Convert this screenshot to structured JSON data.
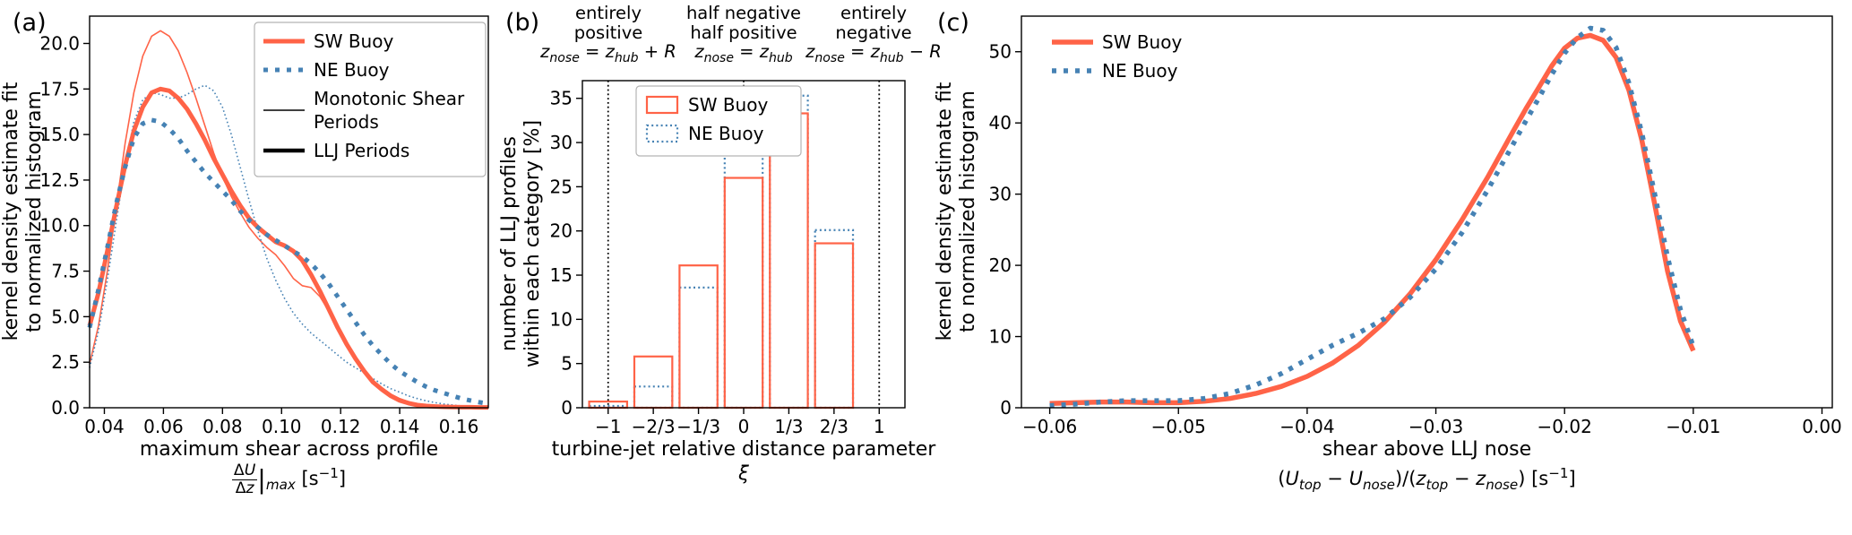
{
  "figure_colors": {
    "sw_buoy": "#ff6347",
    "ne_buoy": "#4682b4",
    "axis": "#000000",
    "legend_edge": "#b3b3b3"
  },
  "chart_data": [
    {
      "type": "line",
      "panel_label": "(a)",
      "ylabel_html": "kernel density estimate fit<br>to normalized histogram",
      "xlabel_line1": "maximum shear across profile",
      "xlabel_line2_html": "<span class=\"frac\"><span class=\"num\">Δ<i>U</i></span><span>Δ<i>z</i></span></span><span class=\"vbar\">|</span><sub><i>max</i></sub>&nbsp;[s<sup>−1</sup>]",
      "xlim": [
        0.035,
        0.17
      ],
      "ylim": [
        0,
        21.5
      ],
      "xticks": {
        "values": [
          0.04,
          0.06,
          0.08,
          0.1,
          0.12,
          0.14,
          0.16
        ],
        "labels": [
          "0.04",
          "0.06",
          "0.08",
          "0.10",
          "0.12",
          "0.14",
          "0.16"
        ]
      },
      "yticks": {
        "values": [
          0,
          2.5,
          5,
          7.5,
          10,
          12.5,
          15,
          17.5,
          20
        ],
        "labels": [
          "0.0",
          "2.5",
          "5.0",
          "7.5",
          "10.0",
          "12.5",
          "15.0",
          "17.5",
          "20.0"
        ]
      },
      "series": [
        {
          "name": "SW Buoy Monotonic Shear Periods",
          "color": "#ff6347",
          "width": 1.6,
          "dash": "",
          "x": [
            0.035,
            0.038,
            0.041,
            0.044,
            0.047,
            0.05,
            0.053,
            0.056,
            0.059,
            0.062,
            0.065,
            0.068,
            0.071,
            0.074,
            0.077,
            0.08,
            0.083,
            0.086,
            0.089,
            0.092,
            0.095,
            0.098,
            0.101,
            0.104,
            0.107,
            0.11,
            0.113,
            0.116,
            0.119,
            0.122,
            0.125,
            0.128,
            0.131,
            0.134,
            0.137,
            0.14,
            0.143,
            0.146,
            0.149,
            0.152,
            0.155,
            0.158,
            0.161,
            0.164,
            0.167,
            0.17
          ],
          "y": [
            2.4,
            4.5,
            7.5,
            11.0,
            14.5,
            17.3,
            19.3,
            20.4,
            20.7,
            20.4,
            19.6,
            18.4,
            17.0,
            15.5,
            14.0,
            12.7,
            11.6,
            10.7,
            9.9,
            9.3,
            8.8,
            8.4,
            7.8,
            7.1,
            6.7,
            6.6,
            6.1,
            5.3,
            4.4,
            3.5,
            2.7,
            2.1,
            1.5,
            1.1,
            0.75,
            0.5,
            0.33,
            0.2,
            0.13,
            0.08,
            0.05,
            0.04,
            0.03,
            0.02,
            0.02,
            0.01
          ]
        },
        {
          "name": "NE Buoy Monotonic Shear Periods",
          "color": "#4682b4",
          "width": 1.6,
          "dash": "1.6 2.8",
          "x": [
            0.035,
            0.038,
            0.041,
            0.044,
            0.047,
            0.05,
            0.053,
            0.056,
            0.059,
            0.062,
            0.065,
            0.068,
            0.071,
            0.074,
            0.077,
            0.08,
            0.083,
            0.086,
            0.089,
            0.092,
            0.095,
            0.098,
            0.101,
            0.104,
            0.107,
            0.11,
            0.113,
            0.116,
            0.119,
            0.122,
            0.125,
            0.128,
            0.131,
            0.134,
            0.137,
            0.14,
            0.143,
            0.146,
            0.149,
            0.152,
            0.155,
            0.158,
            0.161,
            0.164,
            0.167,
            0.17
          ],
          "y": [
            2.2,
            4.2,
            7.0,
            10.2,
            13.3,
            15.7,
            16.9,
            17.3,
            17.2,
            17.0,
            17.0,
            17.2,
            17.5,
            17.7,
            17.4,
            16.5,
            15.0,
            13.2,
            11.4,
            9.7,
            8.2,
            7.0,
            6.0,
            5.2,
            4.6,
            4.1,
            3.7,
            3.3,
            2.9,
            2.5,
            2.2,
            1.9,
            1.6,
            1.3,
            1.05,
            0.85,
            0.65,
            0.5,
            0.38,
            0.28,
            0.2,
            0.15,
            0.1,
            0.07,
            0.05,
            0.04
          ]
        },
        {
          "name": "SW Buoy LLJ Periods",
          "color": "#ff6347",
          "width": 5,
          "dash": "",
          "x": [
            0.035,
            0.038,
            0.041,
            0.044,
            0.047,
            0.05,
            0.053,
            0.056,
            0.059,
            0.062,
            0.065,
            0.068,
            0.071,
            0.074,
            0.077,
            0.08,
            0.083,
            0.086,
            0.089,
            0.092,
            0.095,
            0.098,
            0.101,
            0.104,
            0.107,
            0.11,
            0.113,
            0.116,
            0.119,
            0.122,
            0.125,
            0.128,
            0.131,
            0.134,
            0.137,
            0.14,
            0.143,
            0.146,
            0.149,
            0.152,
            0.155,
            0.158,
            0.161,
            0.164,
            0.167,
            0.17
          ],
          "y": [
            4.5,
            6.3,
            8.6,
            11.0,
            13.3,
            15.2,
            16.5,
            17.3,
            17.5,
            17.4,
            17.0,
            16.4,
            15.6,
            14.7,
            13.7,
            12.8,
            11.9,
            11.1,
            10.4,
            9.9,
            9.5,
            9.1,
            8.9,
            8.6,
            8.1,
            7.3,
            6.4,
            5.4,
            4.4,
            3.5,
            2.7,
            2.0,
            1.4,
            1.0,
            0.65,
            0.4,
            0.25,
            0.15,
            0.1,
            0.07,
            0.05,
            0.04,
            0.03,
            0.03,
            0.02,
            0.02
          ]
        },
        {
          "name": "NE Buoy LLJ Periods",
          "color": "#4682b4",
          "width": 5,
          "dash": "5 8",
          "x": [
            0.035,
            0.038,
            0.041,
            0.044,
            0.047,
            0.05,
            0.053,
            0.056,
            0.059,
            0.062,
            0.065,
            0.068,
            0.071,
            0.074,
            0.077,
            0.08,
            0.083,
            0.086,
            0.089,
            0.092,
            0.095,
            0.098,
            0.101,
            0.104,
            0.107,
            0.11,
            0.113,
            0.116,
            0.119,
            0.122,
            0.125,
            0.128,
            0.131,
            0.134,
            0.137,
            0.14,
            0.143,
            0.146,
            0.149,
            0.152,
            0.155,
            0.158,
            0.161,
            0.164,
            0.167,
            0.17
          ],
          "y": [
            4.4,
            6.5,
            8.8,
            11.2,
            13.2,
            14.8,
            15.6,
            15.8,
            15.7,
            15.3,
            14.8,
            14.1,
            13.5,
            12.9,
            12.4,
            11.9,
            11.4,
            10.8,
            10.3,
            9.9,
            9.5,
            9.2,
            8.9,
            8.6,
            8.3,
            7.9,
            7.4,
            6.8,
            6.1,
            5.4,
            4.7,
            4.0,
            3.4,
            2.9,
            2.4,
            2.0,
            1.7,
            1.4,
            1.15,
            0.95,
            0.8,
            0.65,
            0.5,
            0.4,
            0.3,
            0.22
          ]
        }
      ],
      "legend": {
        "frame": true,
        "entries": [
          {
            "type": "line",
            "label_lines": [
              "SW Buoy"
            ],
            "color": "#ff6347",
            "width": 5,
            "dash": ""
          },
          {
            "type": "line",
            "label_lines": [
              "NE Buoy"
            ],
            "color": "#4682b4",
            "width": 5,
            "dash": "5 8"
          },
          {
            "type": "line",
            "label_lines": [
              "Monotonic Shear",
              "Periods"
            ],
            "color": "#000000",
            "width": 1.6,
            "dash": ""
          },
          {
            "type": "line",
            "label_lines": [
              "LLJ Periods"
            ],
            "color": "#000000",
            "width": 4.5,
            "dash": ""
          }
        ]
      }
    },
    {
      "type": "bar",
      "panel_label": "(b)",
      "ylabel_html": "number of LLJ profiles<br>within each category [%]",
      "xlabel_line1": "turbine-jet relative distance parameter",
      "xlabel_line2_html": "<i>ξ</i>",
      "annotations": [
        "entirely<br>positive<br><i>z</i><sub><i>nose</i></sub> = <i>z</i><sub><i>hub</i></sub> + <i>R</i>",
        "half negative<br>half positive<br><i>z</i><sub><i>nose</i></sub> = <i>z</i><sub><i>hub</i></sub>",
        "entirely<br>negative<br><i>z</i><sub><i>nose</i></sub> = <i>z</i><sub><i>hub</i></sub> − <i>R</i>"
      ],
      "xlim": [
        -1.19,
        1.19
      ],
      "ylim": [
        0,
        37
      ],
      "xticks": {
        "values": [
          -1,
          -0.6667,
          -0.3333,
          0,
          0.3333,
          0.6667,
          1
        ],
        "labels": [
          "−1",
          "−2/3",
          "−1/3",
          "0",
          "1/3",
          "2/3",
          "1"
        ]
      },
      "yticks": {
        "values": [
          0,
          5,
          10,
          15,
          20,
          25,
          30,
          35
        ],
        "labels": [
          "0",
          "5",
          "10",
          "15",
          "20",
          "25",
          "30",
          "35"
        ]
      },
      "vlines": [
        {
          "x": -1,
          "color": "#000000",
          "width": 1.8,
          "dash": "1.8 3"
        },
        {
          "x": 0,
          "color": "#000000",
          "width": 1.8,
          "dash": "1.8 3"
        },
        {
          "x": 1,
          "color": "#000000",
          "width": 1.8,
          "dash": "1.8 3"
        }
      ],
      "bars": {
        "positions": [
          -1,
          -0.6667,
          -0.3333,
          0,
          0.3333,
          0.6667,
          1
        ],
        "bar_width": 0.28,
        "series": [
          {
            "name": "NE Buoy",
            "color": "#4682b4",
            "width": 2.2,
            "dash": "2 3.2",
            "fill": "#ffffff",
            "values": [
              0.2,
              2.4,
              13.6,
              28.7,
              35.3,
              20.1,
              0
            ]
          },
          {
            "name": "SW Buoy",
            "color": "#ff6347",
            "width": 2.2,
            "dash": "",
            "fill": "none",
            "values": [
              0.7,
              5.8,
              16.1,
              26.0,
              33.3,
              18.6,
              0
            ]
          }
        ]
      },
      "legend": {
        "frame": true,
        "entries": [
          {
            "type": "rect",
            "label_lines": [
              "SW Buoy"
            ],
            "color": "#ff6347",
            "width": 2.2,
            "dash": ""
          },
          {
            "type": "rect",
            "label_lines": [
              "NE Buoy"
            ],
            "color": "#4682b4",
            "width": 2.2,
            "dash": "2 3.2"
          }
        ]
      }
    },
    {
      "type": "line",
      "panel_label": "(c)",
      "ylabel_html": "kernel density estimate fit<br>to normalized histogram",
      "xlabel_line1": "shear above LLJ nose",
      "xlabel_line2_html": "(<i>U</i><sub><i>top</i></sub> − <i>U</i><sub><i>nose</i></sub>)/(<i>z</i><sub><i>top</i></sub> − <i>z</i><sub><i>nose</i></sub>) [s<sup>−1</sup>]",
      "xlim": [
        -0.0622,
        0.0008
      ],
      "ylim": [
        0,
        55
      ],
      "xticks": {
        "values": [
          -0.06,
          -0.05,
          -0.04,
          -0.03,
          -0.02,
          -0.01,
          0.0
        ],
        "labels": [
          "−0.06",
          "−0.05",
          "−0.04",
          "−0.03",
          "−0.02",
          "−0.01",
          "0.00"
        ]
      },
      "yticks": {
        "values": [
          0,
          10,
          20,
          30,
          40,
          50
        ],
        "labels": [
          "0",
          "10",
          "20",
          "30",
          "40",
          "50"
        ]
      },
      "series": [
        {
          "name": "SW Buoy",
          "color": "#ff6347",
          "width": 5.5,
          "dash": "",
          "x": [
            -0.06,
            -0.058,
            -0.056,
            -0.054,
            -0.052,
            -0.05,
            -0.048,
            -0.046,
            -0.044,
            -0.042,
            -0.04,
            -0.038,
            -0.036,
            -0.034,
            -0.032,
            -0.03,
            -0.028,
            -0.026,
            -0.024,
            -0.023,
            -0.022,
            -0.021,
            -0.02,
            -0.019,
            -0.018,
            -0.017,
            -0.016,
            -0.015,
            -0.014,
            -0.013,
            -0.012,
            -0.011,
            -0.01
          ],
          "y": [
            0.6,
            0.7,
            0.8,
            0.8,
            0.7,
            0.7,
            0.9,
            1.3,
            2.0,
            3.0,
            4.4,
            6.3,
            8.8,
            12.0,
            16.0,
            20.8,
            26.3,
            32.3,
            38.8,
            42.0,
            45.0,
            48.0,
            50.5,
            51.9,
            52.3,
            51.6,
            49.2,
            44.6,
            37.6,
            28.6,
            19.2,
            12.2,
            8.0
          ]
        },
        {
          "name": "NE Buoy",
          "color": "#4682b4",
          "width": 5.5,
          "dash": "5 8",
          "x": [
            -0.06,
            -0.058,
            -0.056,
            -0.054,
            -0.052,
            -0.05,
            -0.048,
            -0.046,
            -0.044,
            -0.042,
            -0.04,
            -0.038,
            -0.036,
            -0.034,
            -0.032,
            -0.03,
            -0.028,
            -0.026,
            -0.024,
            -0.023,
            -0.022,
            -0.021,
            -0.02,
            -0.019,
            -0.018,
            -0.017,
            -0.016,
            -0.015,
            -0.014,
            -0.013,
            -0.012,
            -0.011,
            -0.01
          ],
          "y": [
            0.3,
            0.5,
            0.8,
            1.0,
            1.0,
            1.0,
            1.3,
            2.0,
            3.2,
            4.8,
            6.8,
            8.8,
            10.5,
            12.5,
            15.5,
            19.5,
            24.5,
            30.5,
            37.0,
            40.3,
            43.5,
            46.8,
            49.8,
            52.0,
            53.3,
            53.0,
            50.6,
            45.6,
            38.6,
            30.0,
            21.2,
            13.8,
            8.6
          ]
        }
      ],
      "legend": {
        "frame": false,
        "entries": [
          {
            "type": "line",
            "label_lines": [
              "SW Buoy"
            ],
            "color": "#ff6347",
            "width": 5.5,
            "dash": ""
          },
          {
            "type": "line",
            "label_lines": [
              "NE Buoy"
            ],
            "color": "#4682b4",
            "width": 5.5,
            "dash": "5 8"
          }
        ]
      }
    }
  ]
}
